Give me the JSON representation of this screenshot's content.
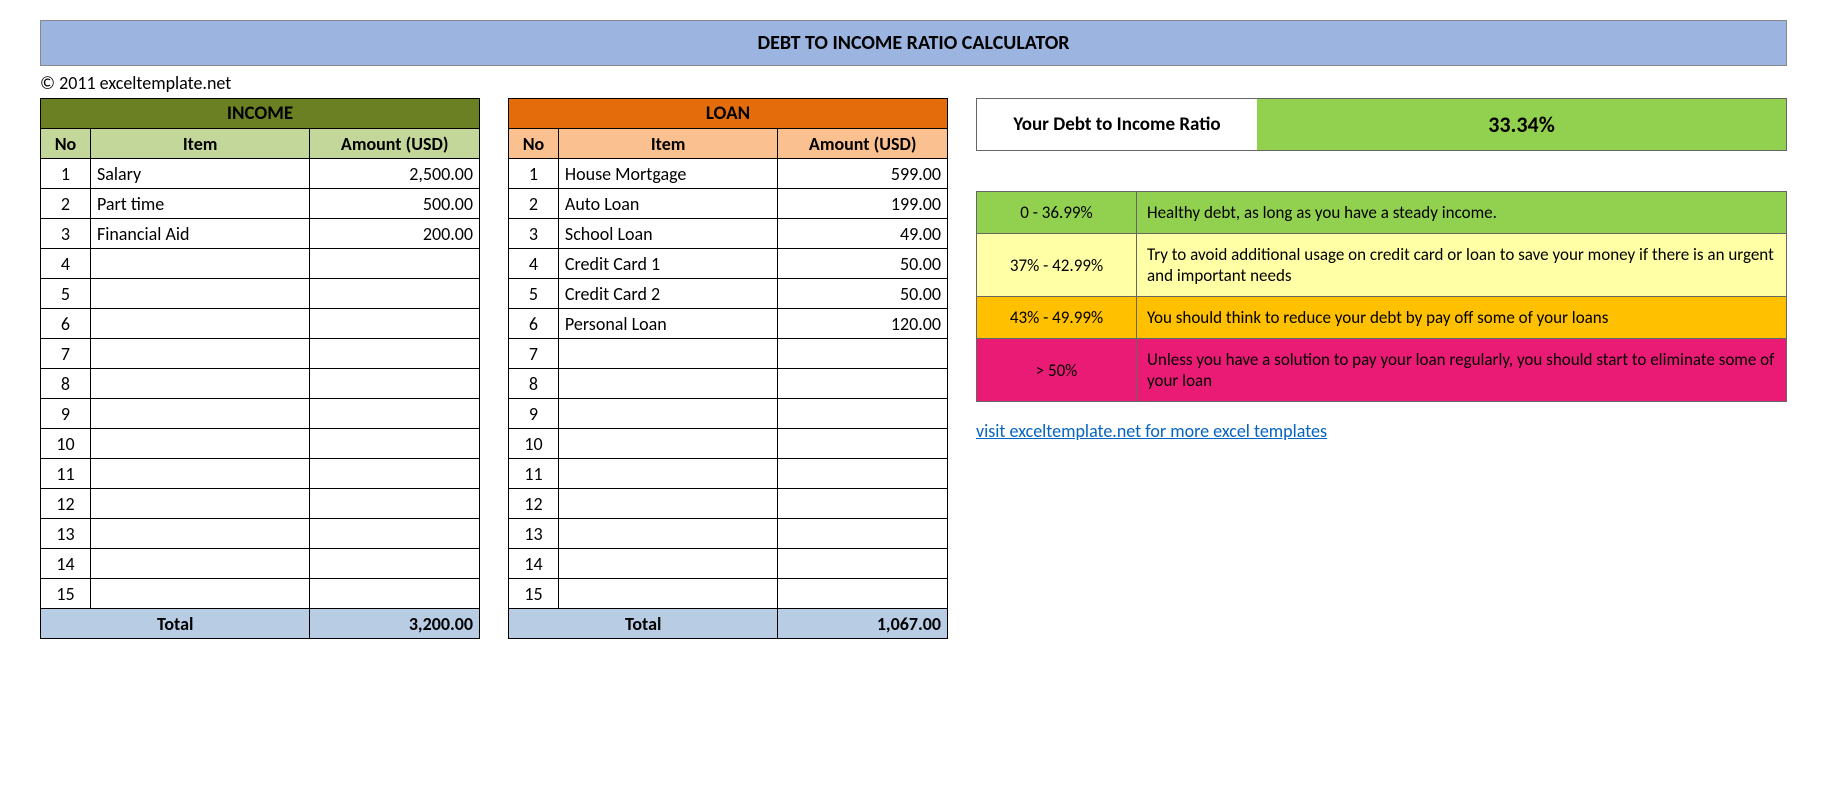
{
  "title": "DEBT TO INCOME RATIO CALCULATOR",
  "title_bg": "#9bb5e0",
  "copyright": "© 2011 exceltemplate.net",
  "row_count": 15,
  "income": {
    "header": "INCOME",
    "header_bg": "#6b8023",
    "header_text_color": "#000000",
    "sub_bg": "#c4d79b",
    "cols": {
      "no": "No",
      "item": "Item",
      "amount": "Amount (USD)"
    },
    "rows": [
      {
        "no": "1",
        "item": "Salary",
        "amount": "2,500.00"
      },
      {
        "no": "2",
        "item": "Part time",
        "amount": "500.00"
      },
      {
        "no": "3",
        "item": "Financial Aid",
        "amount": "200.00"
      }
    ],
    "total_label": "Total",
    "total_bg": "#b8cce4",
    "total_amount": "3,200.00"
  },
  "loan": {
    "header": "LOAN",
    "header_bg": "#e46c0a",
    "header_text_color": "#000000",
    "sub_bg": "#fac090",
    "cols": {
      "no": "No",
      "item": "Item",
      "amount": "Amount (USD)"
    },
    "rows": [
      {
        "no": "1",
        "item": "House Mortgage",
        "amount": "599.00"
      },
      {
        "no": "2",
        "item": "Auto Loan",
        "amount": "199.00"
      },
      {
        "no": "3",
        "item": "School Loan",
        "amount": "49.00"
      },
      {
        "no": "4",
        "item": "Credit Card 1",
        "amount": "50.00"
      },
      {
        "no": "5",
        "item": "Credit Card 2",
        "amount": "50.00"
      },
      {
        "no": "6",
        "item": "Personal Loan",
        "amount": "120.00"
      }
    ],
    "total_label": "Total",
    "total_bg": "#b8cce4",
    "total_amount": "1,067.00"
  },
  "ratio": {
    "label": "Your Debt to Income Ratio",
    "value": "33.34%",
    "value_bg": "#92d050"
  },
  "legend": [
    {
      "range": "0 - 36.99%",
      "desc": "Healthy debt, as long as you have a steady income.",
      "bg": "#92d050"
    },
    {
      "range": "37% - 42.99%",
      "desc": "Try to avoid additional usage on credit card or loan to save your money if there is an urgent and important needs",
      "bg": "#ffffa6"
    },
    {
      "range": "43% - 49.99%",
      "desc": "You should think to reduce your debt by pay off some of your loans",
      "bg": "#ffc000"
    },
    {
      "range": "> 50%",
      "desc": "Unless you have a solution to pay your loan regularly, you should start to eliminate some of your loan",
      "bg": "#ea1b75"
    }
  ],
  "link_text": "visit exceltemplate.net for more excel templates"
}
